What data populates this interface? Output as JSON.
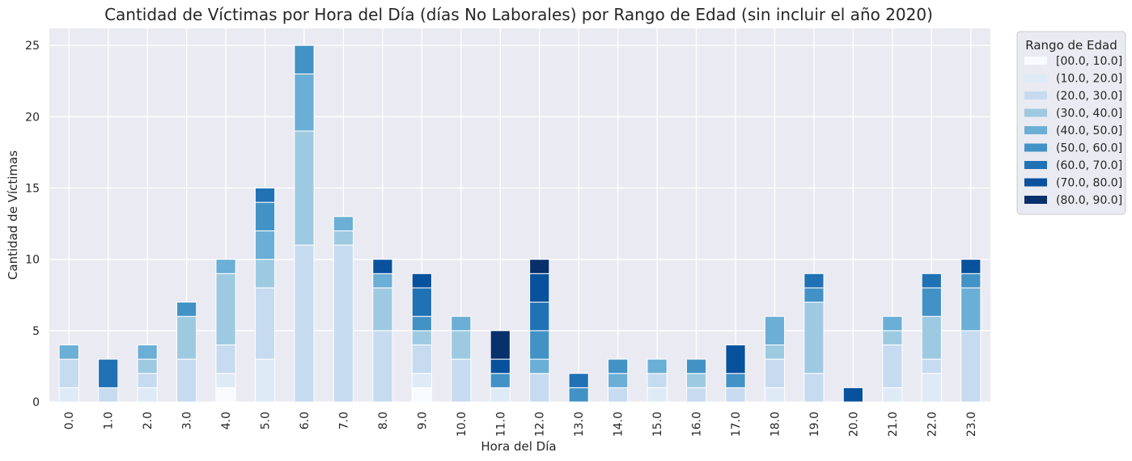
{
  "chart_data": {
    "type": "bar",
    "stacked": true,
    "title": "Cantidad de Víctimas por Hora del Día (días No Laborales) por Rango de Edad (sin incluir el año 2020)",
    "xlabel": "Hora del Día",
    "ylabel": "Cantidad de Víctimas",
    "ylim": [
      0,
      26.2
    ],
    "yticks": [
      "0",
      "5",
      "10",
      "15",
      "20",
      "25"
    ],
    "grid": true,
    "legend_title": "Rango de Edad",
    "legend_position": "outside-top-right",
    "categories": [
      "0.0",
      "1.0",
      "2.0",
      "3.0",
      "4.0",
      "5.0",
      "6.0",
      "7.0",
      "8.0",
      "9.0",
      "10.0",
      "11.0",
      "12.0",
      "13.0",
      "14.0",
      "15.0",
      "16.0",
      "17.0",
      "18.0",
      "19.0",
      "20.0",
      "21.0",
      "22.0",
      "23.0"
    ],
    "series": [
      {
        "name": "[00.0, 10.0]",
        "color": "#f7fbff",
        "values": [
          0,
          0,
          0,
          0,
          1,
          0,
          0,
          0,
          0,
          1,
          0,
          0,
          0,
          0,
          0,
          0,
          0,
          0,
          0,
          0,
          0,
          0,
          0,
          0
        ]
      },
      {
        "name": "(10.0, 20.0]",
        "color": "#deebf7",
        "values": [
          1,
          0,
          1,
          0,
          1,
          3,
          0,
          0,
          0,
          1,
          0,
          1,
          0,
          0,
          0,
          1,
          0,
          0,
          1,
          0,
          0,
          1,
          2,
          0
        ]
      },
      {
        "name": "(20.0, 30.0]",
        "color": "#c6dbef",
        "values": [
          2,
          1,
          1,
          3,
          2,
          5,
          11,
          11,
          5,
          2,
          3,
          0,
          2,
          0,
          1,
          1,
          1,
          1,
          2,
          2,
          0,
          3,
          1,
          5
        ]
      },
      {
        "name": "(30.0, 40.0]",
        "color": "#9ecae1",
        "values": [
          0,
          0,
          1,
          3,
          5,
          2,
          8,
          1,
          3,
          1,
          2,
          0,
          0,
          0,
          0,
          0,
          1,
          0,
          1,
          5,
          0,
          1,
          3,
          0
        ]
      },
      {
        "name": "(40.0, 50.0]",
        "color": "#6baed6",
        "values": [
          1,
          0,
          1,
          0,
          1,
          2,
          4,
          1,
          1,
          0,
          1,
          0,
          1,
          0,
          1,
          1,
          0,
          0,
          2,
          0,
          0,
          1,
          0,
          3
        ]
      },
      {
        "name": "(50.0, 60.0]",
        "color": "#4292c6",
        "values": [
          0,
          0,
          0,
          1,
          0,
          2,
          2,
          0,
          0,
          1,
          0,
          1,
          2,
          1,
          1,
          0,
          1,
          1,
          0,
          1,
          0,
          0,
          2,
          1
        ]
      },
      {
        "name": "(60.0, 70.0]",
        "color": "#2171b5",
        "values": [
          0,
          2,
          0,
          0,
          0,
          1,
          0,
          0,
          0,
          2,
          0,
          0,
          2,
          1,
          0,
          0,
          0,
          0,
          0,
          1,
          0,
          0,
          1,
          0
        ]
      },
      {
        "name": "(70.0, 80.0]",
        "color": "#08519c",
        "values": [
          0,
          0,
          0,
          0,
          0,
          0,
          0,
          0,
          1,
          1,
          0,
          1,
          2,
          0,
          0,
          0,
          0,
          2,
          0,
          0,
          1,
          0,
          0,
          1
        ]
      },
      {
        "name": "(80.0, 90.0]",
        "color": "#08306b",
        "values": [
          0,
          0,
          0,
          0,
          0,
          0,
          0,
          0,
          0,
          0,
          0,
          2,
          1,
          0,
          0,
          0,
          0,
          0,
          0,
          0,
          0,
          0,
          0,
          0
        ]
      }
    ]
  }
}
